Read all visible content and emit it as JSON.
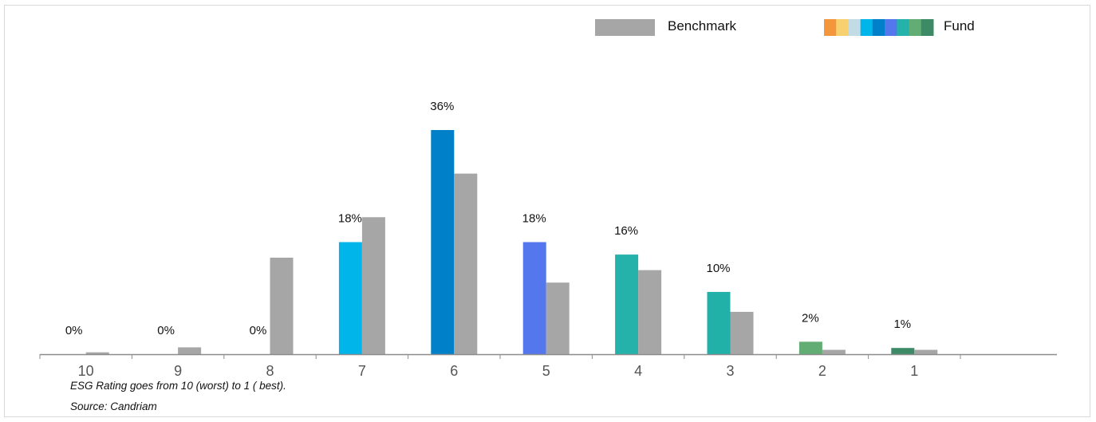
{
  "chart_data": {
    "type": "bar",
    "categories": [
      "10",
      "9",
      "8",
      "7",
      "6",
      "5",
      "4",
      "3",
      "2",
      "1"
    ],
    "series": [
      {
        "name": "Fund",
        "values": [
          0,
          0,
          0,
          18,
          36,
          18,
          16,
          10,
          2,
          1
        ],
        "data_labels": [
          "0%",
          "0%",
          "0%",
          "18%",
          "36%",
          "18%",
          "16%",
          "10%",
          "2%",
          "1%"
        ],
        "colors": [
          "#F4963C",
          "#F7D070",
          "#C2DCE6",
          "#00B5E9",
          "#0080C8",
          "#5577EE",
          "#24B2AA",
          "#22B1A8",
          "#62AD74",
          "#3C8A66"
        ]
      },
      {
        "name": "Benchmark",
        "values": [
          0.3,
          1.1,
          15.5,
          22,
          29,
          11.5,
          13.5,
          6.8,
          0.7,
          0.7
        ],
        "color": "#A6A6A6"
      }
    ],
    "legend": {
      "position": "top-right",
      "benchmark_label": "Benchmark",
      "fund_label": "Fund",
      "fund_swatch_colors": [
        "#F4963C",
        "#F7D070",
        "#C2DCE6",
        "#00B5E9",
        "#0080C8",
        "#5577EE",
        "#24B2AA",
        "#62AD74",
        "#3C8A66"
      ]
    },
    "ylim": [
      0,
      40
    ],
    "grid": false
  },
  "notes": {
    "rating_note": "ESG Rating goes from 10 (worst) to 1 ( best).",
    "source": "Source: Candriam"
  }
}
